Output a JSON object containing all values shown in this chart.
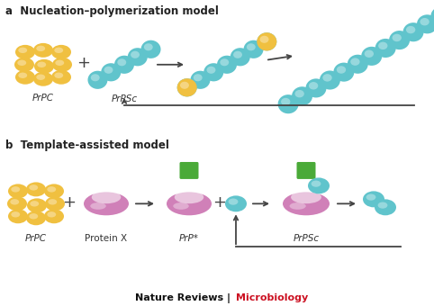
{
  "title_a": "a  Nucleation–polymerization model",
  "title_b": "b  Template-assisted model",
  "label_prpc": "PrPC",
  "label_prpsc_a": "PrPSc",
  "label_protein_x": "Protein X",
  "label_prp_star": "PrP*",
  "label_prpsc_b": "PrPSc",
  "footer_black": "Nature Reviews | ",
  "footer_red": "Microbiology",
  "col_prpc": "#F0C040",
  "col_prpsc": "#60C4CC",
  "col_px": "#D080B8",
  "col_green": "#4AAA38",
  "col_arrow": "#444444",
  "col_bg": "#FFFFFF",
  "col_title": "#222222",
  "col_footer_black": "#111111",
  "col_footer_red": "#CC1122"
}
